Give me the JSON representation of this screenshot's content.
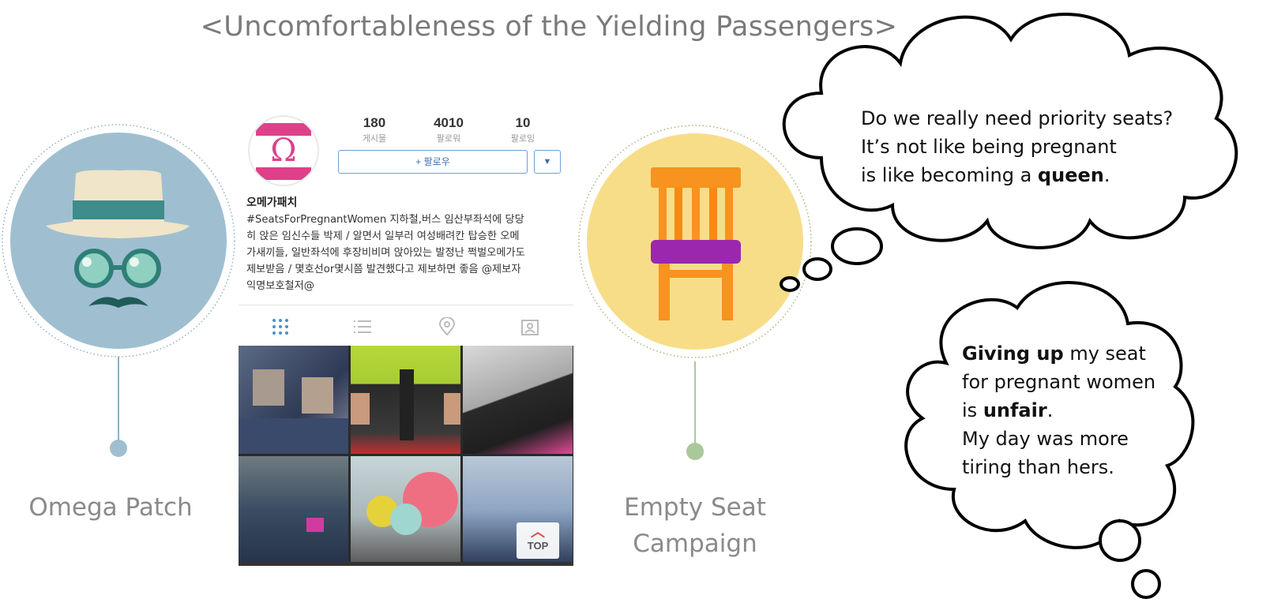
{
  "title": "<Uncomfortableness of the Yielding Passengers>",
  "left_caption": "Omega Patch",
  "right_caption_line1": "Empty Seat",
  "right_caption_line2": "Campaign",
  "profile": {
    "posts_count": "180",
    "posts_label": "게시물",
    "followers_count": "4010",
    "followers_label": "팔로워",
    "following_count": "10",
    "following_label": "팔로잉",
    "follow_button": "+ 팔로우",
    "dropdown_glyph": "▼",
    "name": "오메가패치",
    "bio_lines": [
      "#SeatsForPregnantWomen 지하철,버스 임산부좌석에 당당",
      "히 앉은 임신수들 박제 / 알면서 일부러 여성배려칸 탑승한 오메",
      "가새끼들, 일반좌석에 후장비비며 앉아있는 발정난 쩍벌오메가도",
      "제보받음 / 몇호선or몇시쯤 발견했다고 제보하면 좋음 @제보자",
      "익명보호철저@"
    ],
    "avatar_logo_text": "Ω",
    "top_button": "TOP"
  },
  "cloud1": {
    "line1": "Do we really need priority seats?",
    "line2": "It’s not like being pregnant",
    "line3_prefix": "is like becoming a ",
    "line3_bold": "queen",
    "line3_suffix": "."
  },
  "cloud2": {
    "line1_bold": "Giving up",
    "line1_rest": " my seat",
    "line2": "for pregnant women",
    "line3_prefix": "is ",
    "line3_bold": "unfair",
    "line3_suffix": ".",
    "line4": "My day was more",
    "line5": "tiring than hers."
  },
  "colors": {
    "left_circle": "#9fbfd1",
    "right_circle": "#f7dd88",
    "chair_orange": "#f7931e",
    "chair_seat": "#9b27af",
    "left_stem": "#8fb0c4",
    "right_stem": "#a9c89b"
  }
}
